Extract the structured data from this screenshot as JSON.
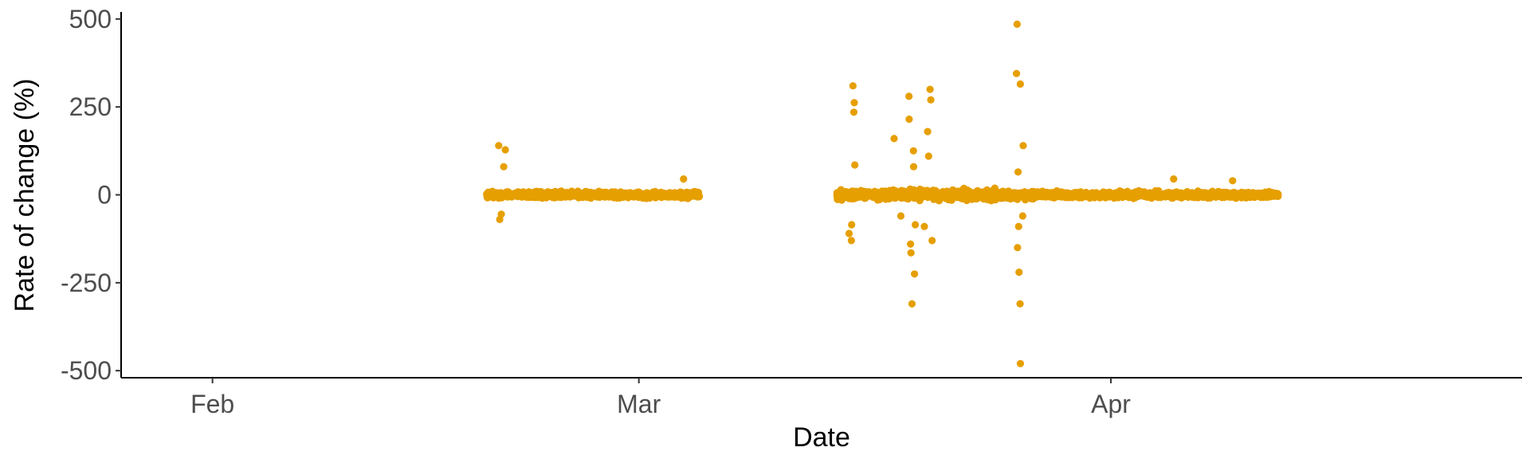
{
  "chart_data": {
    "type": "scatter",
    "xlabel": "Date",
    "ylabel": "Rate of change (%)",
    "x_ticks": [
      "Feb",
      "Mar",
      "Apr"
    ],
    "y_ticks": [
      "500",
      "250",
      "0",
      "-250",
      "-500"
    ],
    "ylim": [
      -520,
      520
    ],
    "xlim": [
      "2021-01-26",
      "2021-04-28"
    ],
    "x_tick_dates": [
      "2021-02-01",
      "2021-03-01",
      "2021-04-01"
    ],
    "y_tick_values": [
      500,
      250,
      0,
      -250,
      -500
    ],
    "grid": false,
    "marker_color": "#E69F00",
    "series": [
      {
        "clusters": [
          {
            "x_start": "2021-02-19",
            "x_end": "2021-03-05",
            "min": -70,
            "max": 140
          },
          {
            "x_start": "2021-03-14",
            "x_end": "2021-04-12",
            "min": -480,
            "max": 485
          }
        ],
        "outliers": [
          {
            "x": "2021-02-20",
            "y": 140
          },
          {
            "x": "2021-02-20",
            "y": 128
          },
          {
            "x": "2021-02-20",
            "y": 80
          },
          {
            "x": "2021-02-20",
            "y": -70
          },
          {
            "x": "2021-02-20",
            "y": -55
          },
          {
            "x": "2021-03-04",
            "y": 45
          },
          {
            "x": "2021-03-15",
            "y": 310
          },
          {
            "x": "2021-03-15",
            "y": 262
          },
          {
            "x": "2021-03-15",
            "y": 235
          },
          {
            "x": "2021-03-15",
            "y": 85
          },
          {
            "x": "2021-03-15",
            "y": -85
          },
          {
            "x": "2021-03-15",
            "y": -110
          },
          {
            "x": "2021-03-15",
            "y": -130
          },
          {
            "x": "2021-03-18",
            "y": 160
          },
          {
            "x": "2021-03-18",
            "y": -60
          },
          {
            "x": "2021-03-19",
            "y": 280
          },
          {
            "x": "2021-03-19",
            "y": 215
          },
          {
            "x": "2021-03-19",
            "y": 125
          },
          {
            "x": "2021-03-19",
            "y": 80
          },
          {
            "x": "2021-03-19",
            "y": -85
          },
          {
            "x": "2021-03-19",
            "y": -165
          },
          {
            "x": "2021-03-19",
            "y": -225
          },
          {
            "x": "2021-03-19",
            "y": -310
          },
          {
            "x": "2021-03-19",
            "y": -140
          },
          {
            "x": "2021-03-20",
            "y": 300
          },
          {
            "x": "2021-03-20",
            "y": 270
          },
          {
            "x": "2021-03-20",
            "y": 180
          },
          {
            "x": "2021-03-20",
            "y": 110
          },
          {
            "x": "2021-03-20",
            "y": -90
          },
          {
            "x": "2021-03-20",
            "y": -130
          },
          {
            "x": "2021-03-26",
            "y": 485
          },
          {
            "x": "2021-03-26",
            "y": 345
          },
          {
            "x": "2021-03-26",
            "y": 315
          },
          {
            "x": "2021-03-26",
            "y": 140
          },
          {
            "x": "2021-03-26",
            "y": 65
          },
          {
            "x": "2021-03-26",
            "y": -60
          },
          {
            "x": "2021-03-26",
            "y": -150
          },
          {
            "x": "2021-03-26",
            "y": -220
          },
          {
            "x": "2021-03-26",
            "y": -310
          },
          {
            "x": "2021-03-26",
            "y": -480
          },
          {
            "x": "2021-03-26",
            "y": -90
          },
          {
            "x": "2021-04-05",
            "y": 45
          },
          {
            "x": "2021-04-09",
            "y": 40
          }
        ]
      }
    ]
  }
}
